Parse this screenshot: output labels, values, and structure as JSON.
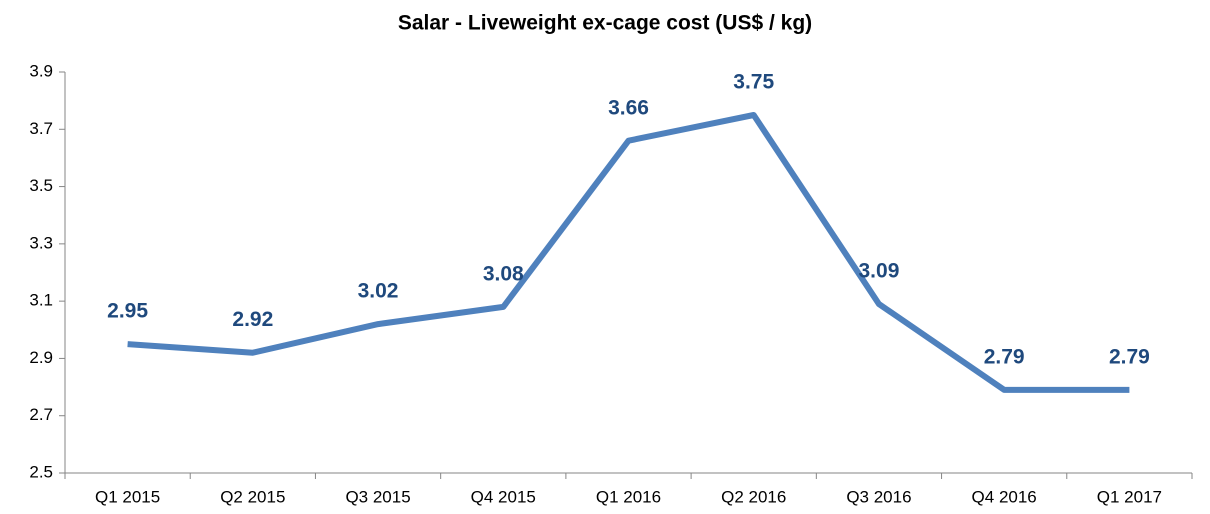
{
  "chart_data": {
    "type": "line",
    "title": "Salar - Liveweight ex-cage cost (US$ / kg)",
    "categories": [
      "Q1 2015",
      "Q2 2015",
      "Q3 2015",
      "Q4 2015",
      "Q1 2016",
      "Q2 2016",
      "Q3 2016",
      "Q4 2016",
      "Q1 2017"
    ],
    "values": [
      2.95,
      2.92,
      3.02,
      3.08,
      3.66,
      3.75,
      3.09,
      2.79,
      2.79
    ],
    "color": "#4f81bd",
    "label_color": "#1f497d",
    "ylim": [
      2.5,
      3.9
    ],
    "yticks": [
      2.5,
      2.7,
      2.9,
      3.1,
      3.3,
      3.5,
      3.7,
      3.9
    ],
    "grid": false
  }
}
